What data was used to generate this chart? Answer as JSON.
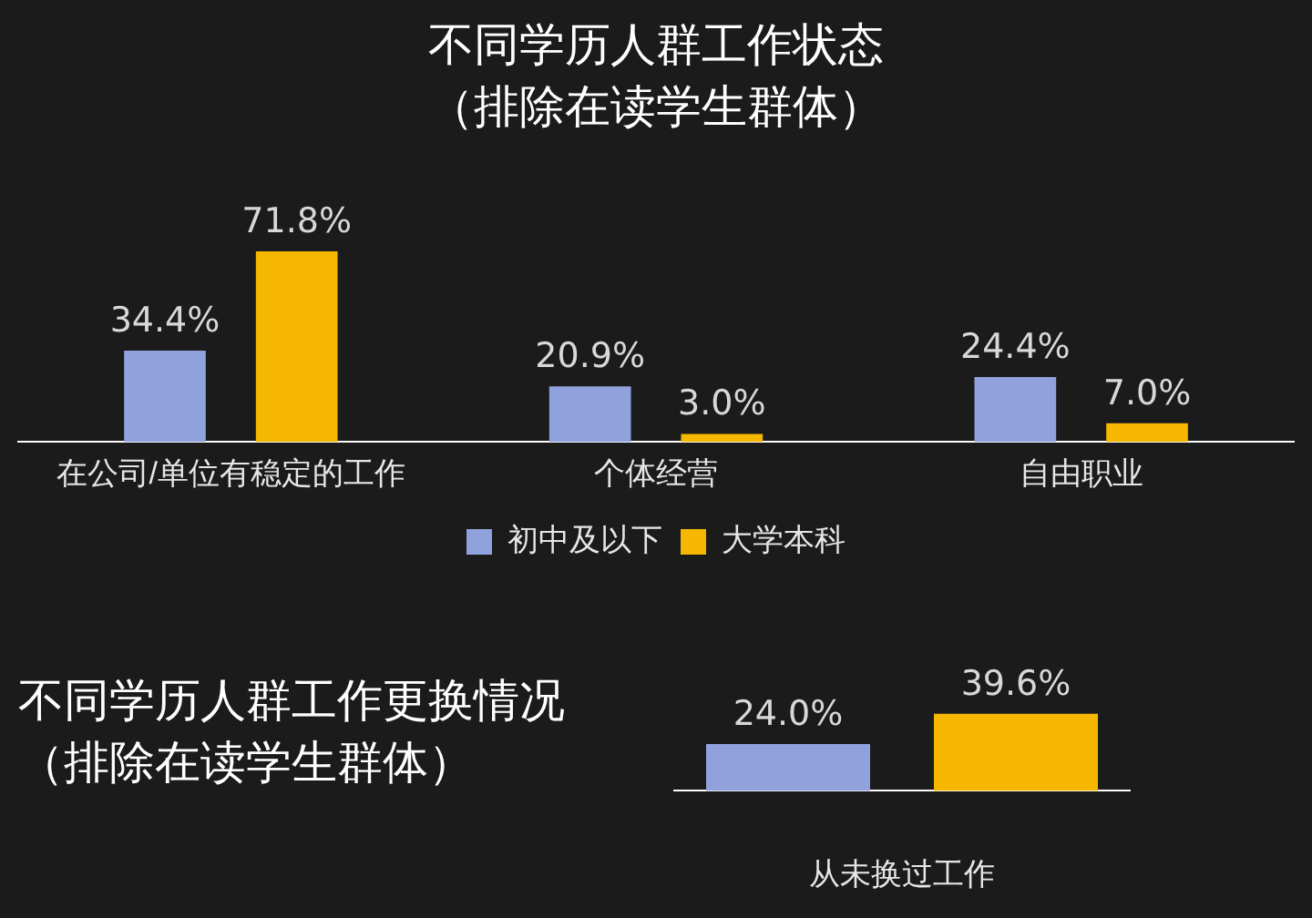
{
  "chart_data": [
    {
      "type": "bar",
      "title": "不同学历人群工作状态",
      "subtitle": "（排除在读学生群体）",
      "categories": [
        "在公司/单位有稳定的工作",
        "个体经营",
        "自由职业"
      ],
      "legend": "bottom",
      "series": [
        {
          "name": "初中及以下",
          "color": "#8fa2dc",
          "values": [
            34.4,
            20.9,
            24.4
          ],
          "value_labels": [
            "34.4%",
            "20.9%",
            "24.4%"
          ]
        },
        {
          "name": "大学本科",
          "color": "#f6b700",
          "values": [
            71.8,
            3.0,
            7.0
          ],
          "value_labels": [
            "71.8%",
            "3.0%",
            "7.0%"
          ]
        }
      ]
    },
    {
      "type": "bar",
      "title": "不同学历人群工作更换情况",
      "subtitle": "（排除在读学生群体）",
      "categories": [
        null,
        null
      ],
      "xlabel": "从未换过工作",
      "series": [
        {
          "colors": [
            "#8fa2dc",
            "#f6b700"
          ],
          "values": [
            24.0,
            39.6
          ],
          "value_labels": [
            "24.0%",
            "39.6%"
          ]
        }
      ]
    }
  ]
}
